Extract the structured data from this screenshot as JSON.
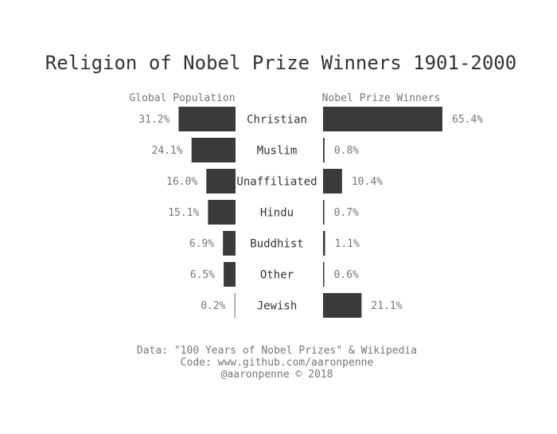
{
  "chart_data": {
    "type": "bar",
    "title": "Religion of Nobel Prize Winners 1901-2000",
    "categories": [
      "Christian",
      "Muslim",
      "Unaffiliated",
      "Hindu",
      "Buddhist",
      "Other",
      "Jewish"
    ],
    "series": [
      {
        "name": "Global Population",
        "values": [
          31.2,
          24.1,
          16.0,
          15.1,
          6.9,
          6.5,
          0.2
        ],
        "labels": [
          "31.2%",
          "24.1%",
          "16.0%",
          "15.1%",
          "6.9%",
          "6.5%",
          "0.2%"
        ]
      },
      {
        "name": "Nobel Prize Winners",
        "values": [
          65.4,
          0.8,
          10.4,
          0.7,
          1.1,
          0.6,
          21.1
        ],
        "labels": [
          "65.4%",
          "0.8%",
          "10.4%",
          "0.7%",
          "1.1%",
          "0.6%",
          "21.1%"
        ]
      }
    ],
    "xlim": [
      0,
      65.4
    ],
    "grid": false,
    "legend": "none",
    "bar_color": "#3a3a3a"
  },
  "footer": {
    "line1": "Data: \"100 Years of Nobel Prizes\" & Wikipedia",
    "line2": "Code: www.github.com/aaronpenne",
    "line3": "@aaronpenne © 2018"
  }
}
